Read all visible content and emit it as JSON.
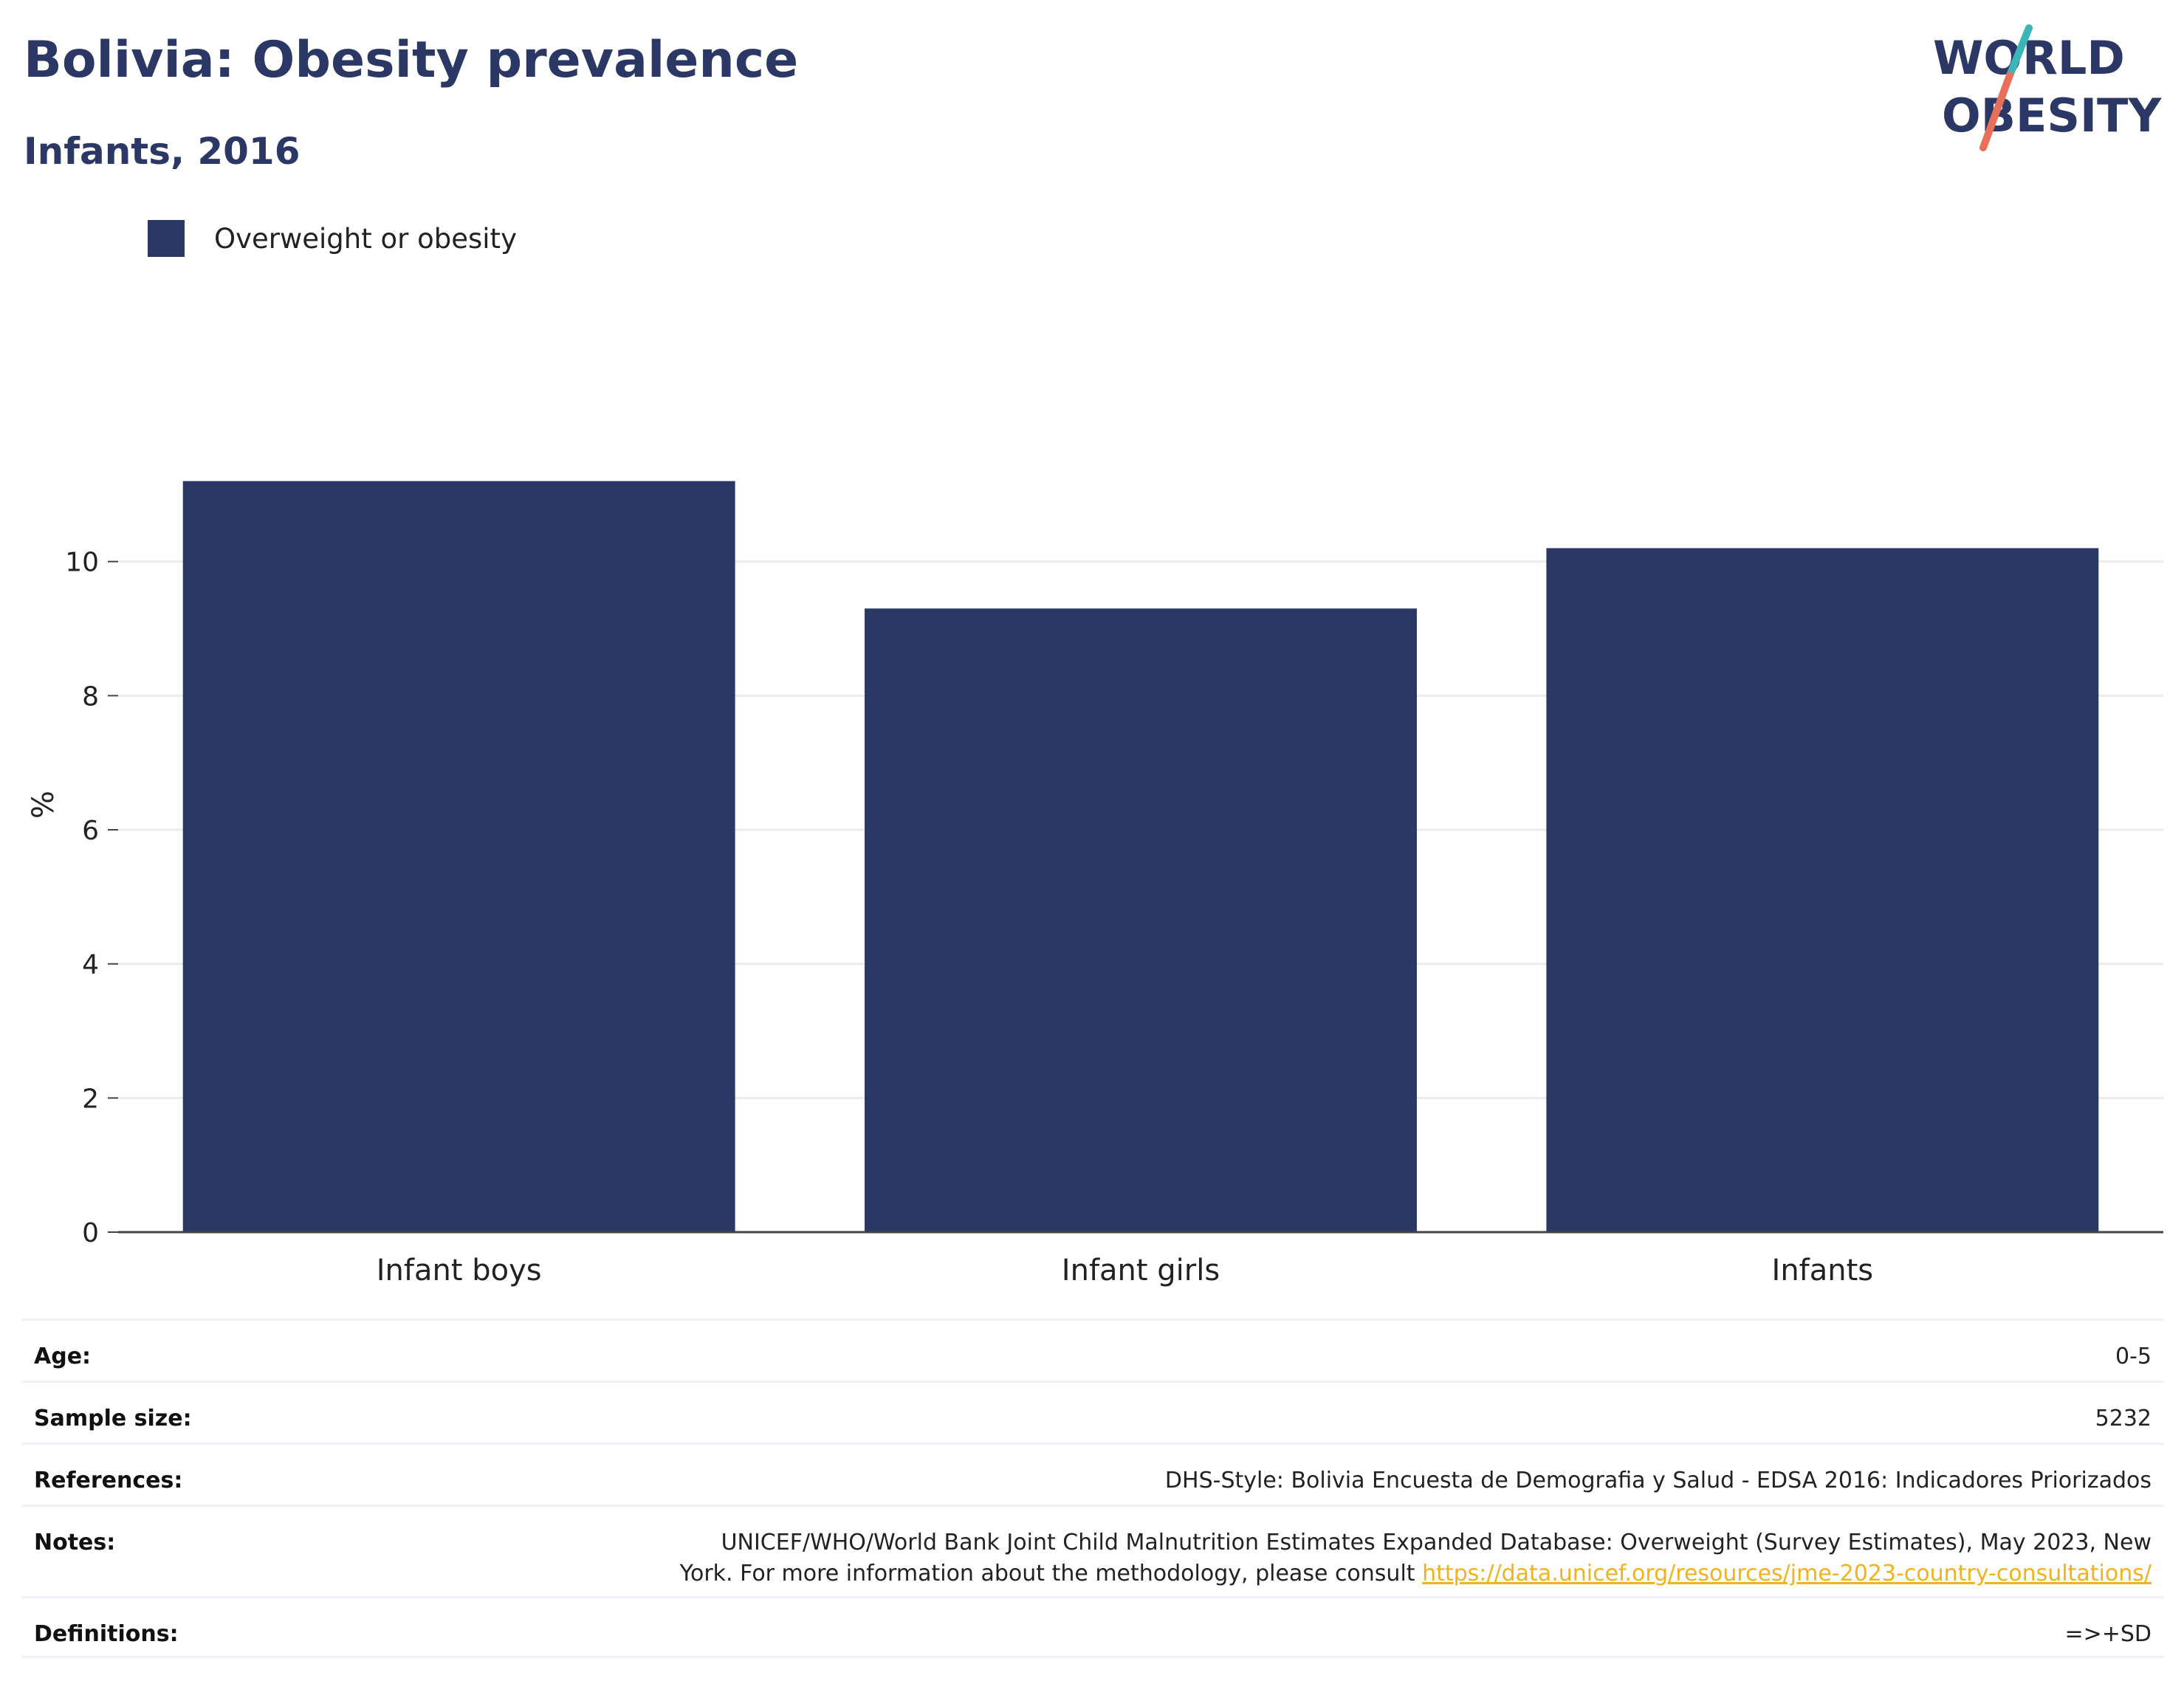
{
  "header": {
    "title": "Bolivia: Obesity prevalence",
    "subtitle": "Infants, 2016"
  },
  "logo": {
    "line1": "WORLD",
    "line2": "OBESITY",
    "text_color": "#2b3764",
    "slash_top_color": "#3ab5b8",
    "slash_bottom_color": "#e8705a"
  },
  "chart_data": {
    "type": "bar",
    "categories": [
      "Infant boys",
      "Infant girls",
      "Infants"
    ],
    "series": [
      {
        "name": "Overweight or obesity",
        "values": [
          11.2,
          9.3,
          10.2
        ],
        "color": "#2b3764"
      }
    ],
    "ylabel": "%",
    "ylim": [
      0,
      13.2
    ],
    "yticks": [
      0,
      2,
      4,
      6,
      8,
      10
    ],
    "grid": true,
    "legend_position": "top-left"
  },
  "info": {
    "age": {
      "label": "Age:",
      "value": "0-5"
    },
    "sample_size": {
      "label": "Sample size:",
      "value": "5232"
    },
    "references": {
      "label": "References:",
      "value": "DHS-Style: Bolivia Encuesta de Demografia y Salud - EDSA 2016: Indicadores Priorizados"
    },
    "notes": {
      "label": "Notes:",
      "line1": "UNICEF/WHO/World Bank Joint Child Malnutrition Estimates Expanded Database: Overweight (Survey Estimates), May 2023, New",
      "line2": "York. For more information about the methodology, please consult",
      "link": "https://data.unicef.org/resources/jme-2023-country-consultations/"
    },
    "definitions": {
      "label": "Definitions:",
      "value": "=>+SD"
    }
  }
}
